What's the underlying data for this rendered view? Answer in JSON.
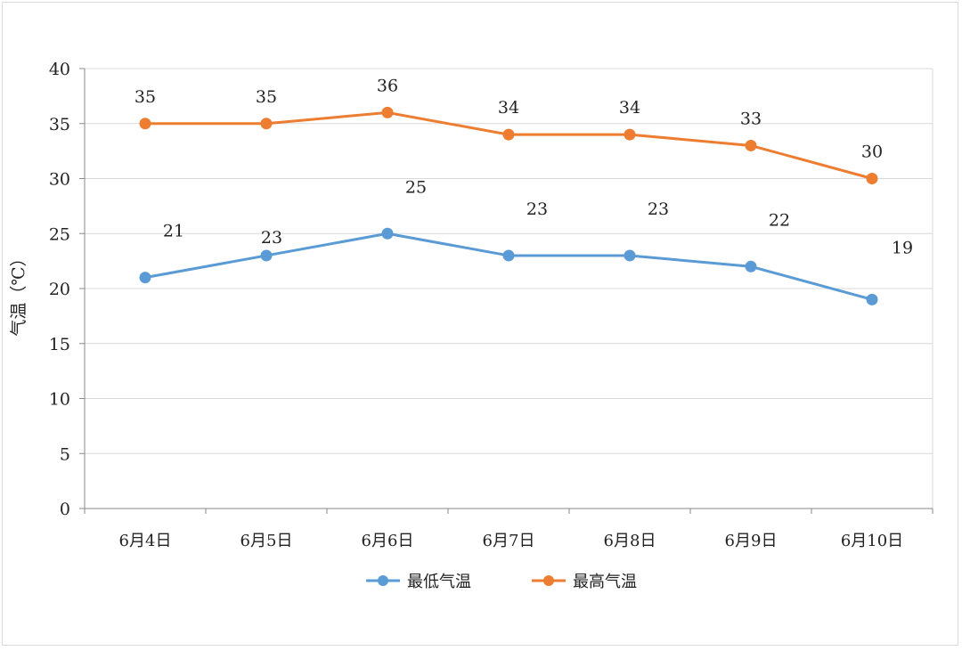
{
  "chart_data": {
    "type": "line",
    "title": "",
    "xlabel": "",
    "ylabel": "气温（℃）",
    "ylim": [
      0,
      40
    ],
    "yticks": [
      0,
      5,
      10,
      15,
      20,
      25,
      30,
      35,
      40
    ],
    "grid": true,
    "legend_position": "bottom",
    "categories": [
      "6月4日",
      "6月5日",
      "6月6日",
      "6月7日",
      "6月8日",
      "6月9日",
      "6月10日"
    ],
    "series": [
      {
        "name": "最低气温",
        "color": "#5b9bd5",
        "values": [
          21,
          23,
          25,
          23,
          23,
          22,
          19
        ]
      },
      {
        "name": "最高气温",
        "color": "#ed7d31",
        "values": [
          35,
          35,
          36,
          34,
          34,
          33,
          30
        ]
      }
    ]
  }
}
